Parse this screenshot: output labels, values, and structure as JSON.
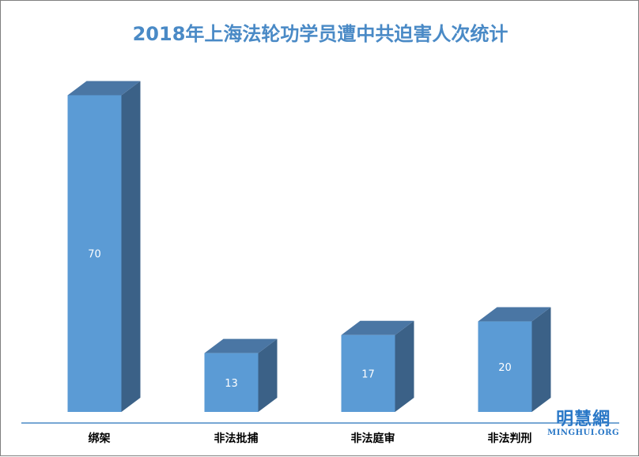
{
  "chart_data": {
    "type": "bar",
    "title": "2018年上海法轮功学员遭中共迫害人次统计",
    "categories": [
      "绑架",
      "非法批捕",
      "非法庭审",
      "非法判刑"
    ],
    "values": [
      70,
      13,
      17,
      20
    ],
    "ylim": [
      0,
      72
    ],
    "grid": false,
    "legend": "none",
    "colors": {
      "front": "#5b9bd5",
      "side": "#3b6187",
      "top": "#4a76a4",
      "label": "#ffffff",
      "axis": "#4a8ac6",
      "category_text": "#000000"
    }
  },
  "watermark": {
    "cn": "明慧網",
    "en": "MINGHUI.ORG"
  }
}
